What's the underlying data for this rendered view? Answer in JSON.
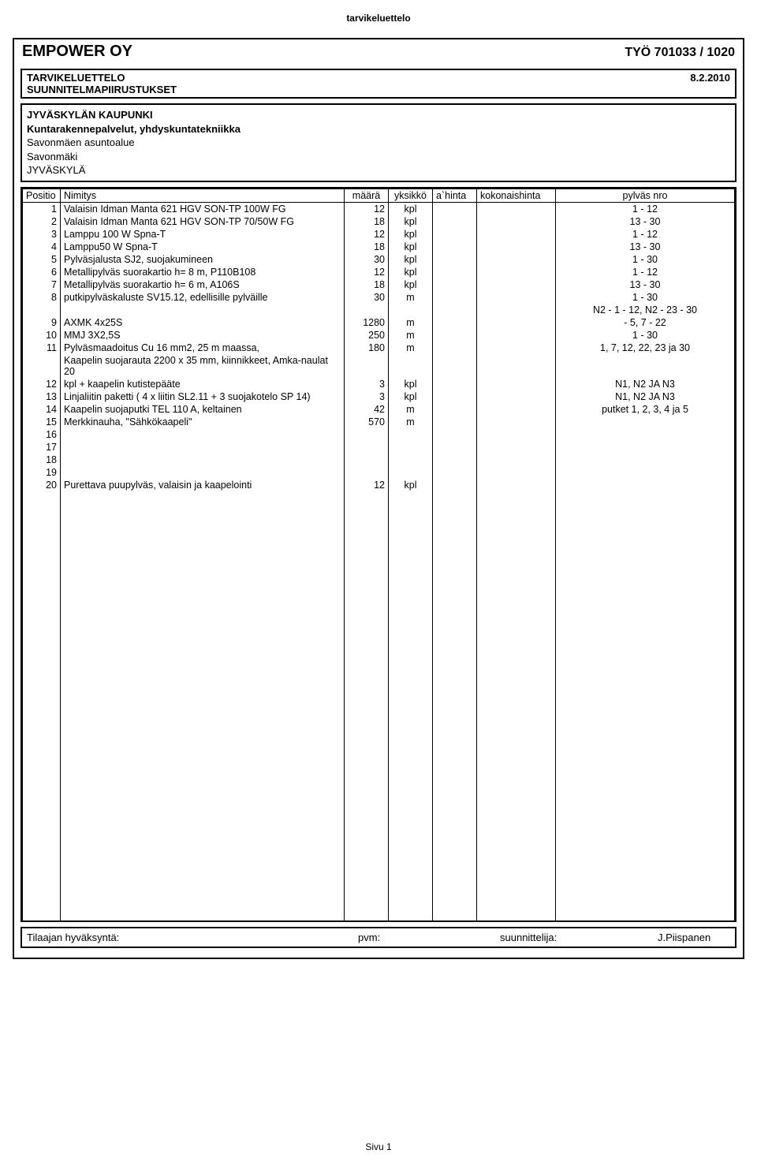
{
  "top_label": "tarvikeluettelo",
  "company": "EMPOWER OY",
  "job": "TYÖ 701033 / 1020",
  "sub_box": {
    "left": "TARVIKELUETTELO",
    "right": "8.2.2010",
    "line2": "SUUNNITELMAPIIRUSTUKSET"
  },
  "info": {
    "l1": "JYVÄSKYLÄN KAUPUNKI",
    "l2": "Kuntarakennepalvelut, yhdyskuntatekniikka",
    "l3": "Savonmäen asuntoalue",
    "l4": "Savonmäki",
    "l5": "JYVÄSKYLÄ"
  },
  "columns": {
    "c1": "Positio",
    "c2": "Nimitys",
    "c3": "määrä",
    "c4": "yksikkö",
    "c5": "a`hinta",
    "c6": "kokonaishinta",
    "c7": "pylväs nro"
  },
  "rows": [
    {
      "pos": "1",
      "nim": "Valaisin Idman Manta 621 HGV SON-TP 100W FG",
      "maa": "12",
      "yks": "kpl",
      "pyl": "1 - 12"
    },
    {
      "pos": "2",
      "nim": "Valaisin Idman Manta 621 HGV SON-TP 70/50W FG",
      "maa": "18",
      "yks": "kpl",
      "pyl": "13 - 30"
    },
    {
      "pos": "3",
      "nim": "Lamppu 100 W Spna-T",
      "maa": "12",
      "yks": "kpl",
      "pyl": "1 - 12"
    },
    {
      "pos": "4",
      "nim": "Lamppu50 W Spna-T",
      "maa": "18",
      "yks": "kpl",
      "pyl": "13 - 30"
    },
    {
      "pos": "5",
      "nim": "Pylväsjalusta SJ2, suojakumineen",
      "maa": "30",
      "yks": "kpl",
      "pyl": "1 - 30"
    },
    {
      "pos": "6",
      "nim": "Metallipylväs suorakartio h= 8 m, P110B108",
      "maa": "12",
      "yks": "kpl",
      "pyl": "1 - 12"
    },
    {
      "pos": "7",
      "nim": "Metallipylväs suorakartio h= 6 m, A106S",
      "maa": "18",
      "yks": "kpl",
      "pyl": "13 - 30"
    },
    {
      "pos": "8",
      "nim": "putkipylväskaluste SV15.12, edellisille pylväille",
      "maa": "30",
      "yks": "m",
      "pyl": "1 - 30"
    },
    {
      "pos": "",
      "nim": "",
      "maa": "",
      "yks": "",
      "pyl": "N2 - 1 - 12,  N2 - 23 - 30"
    },
    {
      "pos": "9",
      "nim": "AXMK 4x25S",
      "maa": "1280",
      "yks": "m",
      "pyl": "- 5,  7 - 22"
    },
    {
      "pos": "10",
      "nim": "MMJ 3X2,5S",
      "maa": "250",
      "yks": "m",
      "pyl": "1 - 30"
    },
    {
      "pos": "11",
      "nim": "Pylväsmaadoitus Cu 16 mm2, 25 m maassa,",
      "maa": "180",
      "yks": "m",
      "pyl": "1, 7, 12, 22, 23 ja 30"
    },
    {
      "pos": "",
      "nim": "Kaapelin suojarauta 2200 x 35 mm, kiinnikkeet, Amka-naulat 20",
      "maa": "",
      "yks": "",
      "pyl": ""
    },
    {
      "pos": "12",
      "nim": "kpl + kaapelin kutistepääte",
      "maa": "3",
      "yks": "kpl",
      "pyl": "N1, N2 JA N3"
    },
    {
      "pos": "13",
      "nim": "Linjaliitin paketti ( 4 x liitin SL2.11 + 3 suojakotelo SP 14)",
      "maa": "3",
      "yks": "kpl",
      "pyl": "N1, N2 JA N3"
    },
    {
      "pos": "14",
      "nim": "Kaapelin suojaputki TEL 110 A, keltainen",
      "maa": "42",
      "yks": "m",
      "pyl": "putket 1, 2, 3, 4 ja 5"
    },
    {
      "pos": "15",
      "nim": "Merkkinauha, \"Sähkökaapeli\"",
      "maa": "570",
      "yks": "m",
      "pyl": ""
    },
    {
      "pos": "16",
      "nim": "",
      "maa": "",
      "yks": "",
      "pyl": ""
    },
    {
      "pos": "17",
      "nim": "",
      "maa": "",
      "yks": "",
      "pyl": ""
    },
    {
      "pos": "18",
      "nim": "",
      "maa": "",
      "yks": "",
      "pyl": ""
    },
    {
      "pos": "19",
      "nim": "",
      "maa": "",
      "yks": "",
      "pyl": ""
    },
    {
      "pos": "20",
      "nim": "Purettava puupylväs, valaisin ja kaapelointi",
      "maa": "12",
      "yks": "kpl",
      "pyl": ""
    }
  ],
  "fill_rows": 34,
  "footer": {
    "f1": "Tilaajan hyväksyntä:",
    "f2": "pvm:",
    "f3": "suunnittelija:",
    "f4": "J.Piispanen"
  },
  "page_num": "Sivu 1"
}
